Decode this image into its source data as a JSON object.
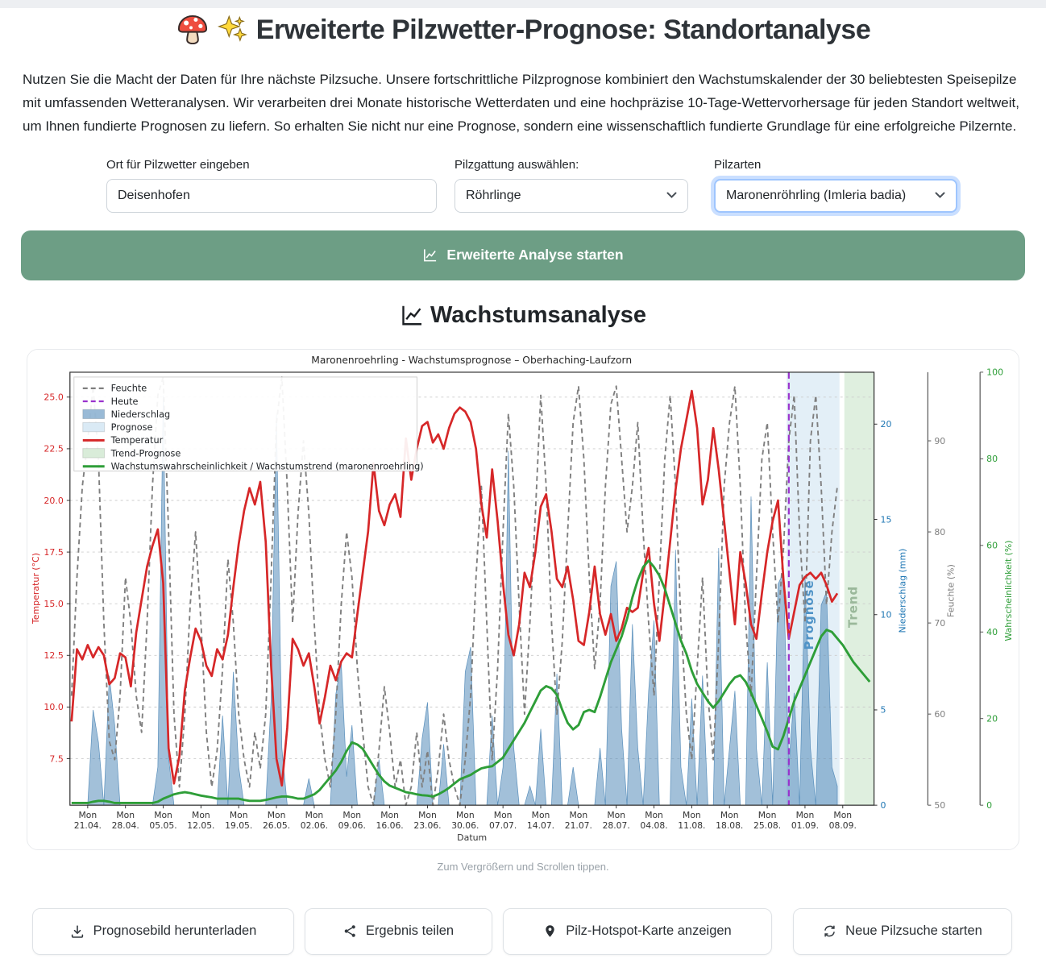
{
  "header": {
    "title": "Erweiterte Pilzwetter-Prognose: Standortanalyse"
  },
  "intro": {
    "text": "Nutzen Sie die Macht der Daten für Ihre nächste Pilzsuche. Unsere fortschrittliche Pilzprognose kombiniert den Wachstumskalender der 30 beliebtesten Speisepilze mit umfassenden Wetteranalysen. Wir verarbeiten drei Monate historische Wetterdaten und eine hochpräzise 10-Tage-Wettervorhersage für jeden Standort weltweit, um Ihnen fundierte Prognosen zu liefern. So erhalten Sie nicht nur eine Prognose, sondern eine wissenschaftlich fundierte Grundlage für eine erfolgreiche Pilzernte."
  },
  "form": {
    "location": {
      "label": "Ort für Pilzwetter eingeben",
      "value": "Deisenhofen"
    },
    "genus": {
      "label": "Pilzgattung auswählen:",
      "value": "Röhrlinge"
    },
    "species": {
      "label": "Pilzarten",
      "value": "Maronenröhrling (Imleria badia)"
    }
  },
  "analyze_button": {
    "label": "Erweiterte Analyse starten"
  },
  "section": {
    "title": "Wachstumsanalyse"
  },
  "chart": {
    "caption": "Zum Vergrößern und Scrollen tippen."
  },
  "actions": [
    {
      "icon": "download-icon",
      "label": "Prognosebild herunterladen"
    },
    {
      "icon": "share-icon",
      "label": "Ergebnis teilen"
    },
    {
      "icon": "map-pin-icon",
      "label": "Pilz-Hotspot-Karte anzeigen"
    },
    {
      "icon": "refresh-icon",
      "label": "Neue Pilzsuche starten"
    }
  ],
  "chart_data": {
    "type": "line",
    "title": "Maronenroehrling - Wachstumsprognose – Oberhaching-Laufzorn",
    "xlabel": "Datum",
    "x_tick_labels": [
      "Mon|21.04.",
      "Mon|28.04.",
      "Mon|05.05.",
      "Mon|12.05.",
      "Mon|19.05.",
      "Mon|26.05.",
      "Mon|02.06.",
      "Mon|09.06.",
      "Mon|16.06.",
      "Mon|23.06.",
      "Mon|30.06.",
      "Mon|07.07.",
      "Mon|14.07.",
      "Mon|21.07.",
      "Mon|28.07.",
      "Mon|04.08.",
      "Mon|11.08.",
      "Mon|18.08.",
      "Mon|25.08.",
      "Mon|01.09.",
      "Mon|08.09."
    ],
    "x_tick_day_indices": [
      3,
      10,
      17,
      24,
      31,
      38,
      45,
      52,
      59,
      66,
      73,
      80,
      87,
      94,
      101,
      108,
      115,
      122,
      129,
      136,
      143
    ],
    "n_days": 149,
    "today_index": 133,
    "forecast_span": [
      132.6,
      142.4
    ],
    "trend_span": [
      143.3,
      149
    ],
    "region_labels": {
      "forecast": "Prognose",
      "trend": "Trend"
    },
    "region_label_colors": {
      "forecast": "#4f93c7",
      "trend": "#9ab89a"
    },
    "today_color": "#9a32cd",
    "grid_color": "#cccccc",
    "axes": {
      "temperature": {
        "label": "Temperatur (°C)",
        "color": "#d62728",
        "ticks": [
          7.5,
          10.0,
          12.5,
          15.0,
          17.5,
          20.0,
          22.5,
          25.0
        ],
        "range": [
          5.25,
          26.2
        ]
      },
      "precipitation": {
        "label": "Niederschlag (mm)",
        "color": "#1f77b4",
        "ticks": [
          0,
          5,
          10,
          15,
          20
        ],
        "range": [
          0,
          22.7
        ]
      },
      "humidity": {
        "label": "Feuchte (%)",
        "color": "#7f7f7f",
        "ticks": [
          50,
          60,
          70,
          80,
          90
        ],
        "range": [
          50,
          97.5
        ]
      },
      "probability": {
        "label": "Wahrscheinlichkeit (%)",
        "color": "#2e9e38",
        "ticks": [
          0,
          20,
          40,
          60,
          80,
          100
        ],
        "range": [
          0,
          100
        ]
      }
    },
    "legend": [
      {
        "label": "Feuchte",
        "type": "dashline",
        "color": "#7f7f7f"
      },
      {
        "label": "Heute",
        "type": "dashline",
        "color": "#9a32cd"
      },
      {
        "label": "Niederschlag",
        "type": "patch",
        "color": "rgba(70,130,180,0.55)"
      },
      {
        "label": "Prognose",
        "type": "patch",
        "color": "#daeaf5"
      },
      {
        "label": "Temperatur",
        "type": "line",
        "color": "#d62728"
      },
      {
        "label": "Trend-Prognose",
        "type": "patch",
        "color": "#d9ecd9"
      },
      {
        "label": "Wachstumswahrscheinlichkeit / Wachstumstrend (maronenroehrling)",
        "type": "line",
        "color": "#2e9e38"
      }
    ],
    "series": {
      "temperature": [
        9.3,
        12.8,
        12.3,
        13,
        12.4,
        12.9,
        12.5,
        11.1,
        11.4,
        12.6,
        12.4,
        11,
        13.6,
        15.2,
        16.8,
        17.8,
        18.6,
        16,
        8,
        6.3,
        7.6,
        10.8,
        12.4,
        13.8,
        13.2,
        12,
        11.5,
        12.8,
        12.3,
        13.5,
        15.8,
        17.9,
        19.5,
        20.6,
        19.8,
        20.9,
        18,
        12,
        7.5,
        6.2,
        9,
        13.3,
        12.8,
        12,
        12.6,
        11,
        9.2,
        10.5,
        12,
        11.3,
        12.2,
        12.6,
        12.4,
        14.5,
        16.5,
        18.5,
        21.8,
        19.5,
        18.8,
        19.8,
        20.3,
        19.2,
        23,
        21,
        22.5,
        23.6,
        23.8,
        22.8,
        23.2,
        22.5,
        23.5,
        24.2,
        24.5,
        24.3,
        23.8,
        22.5,
        19.8,
        18.2,
        21.5,
        19,
        16,
        13.5,
        12.5,
        14,
        16.5,
        15.8,
        17.5,
        19.7,
        20.3,
        18.5,
        16.2,
        15.8,
        16.8,
        15.2,
        13.2,
        13,
        14.6,
        16.8,
        14.5,
        13.5,
        14.5,
        13.2,
        13.8,
        14.8,
        14.6,
        14.8,
        16.5,
        17.7,
        15,
        13.2,
        15.5,
        18,
        20.5,
        22.5,
        23.9,
        25.3,
        23.5,
        19.8,
        21,
        23.5,
        21.5,
        19,
        16.5,
        14,
        17.5,
        16,
        14,
        13.3,
        15.5,
        17.5,
        19,
        20,
        16.2,
        13.3,
        14.6,
        15.9,
        16.3,
        16.5,
        16.2,
        16.5,
        15.9,
        15.1,
        15.5
      ],
      "humidity": [
        62,
        75,
        85,
        90,
        96,
        88,
        70,
        57,
        55,
        62,
        75,
        70,
        62,
        58,
        70,
        85,
        95,
        97,
        80,
        60,
        52,
        60,
        72,
        80,
        70,
        58,
        52,
        56,
        65,
        77,
        70,
        60,
        55,
        52,
        58,
        54,
        60,
        75,
        92,
        97,
        85,
        70,
        82,
        90,
        82,
        70,
        60,
        55,
        52,
        60,
        72,
        80,
        75,
        65,
        58,
        52,
        50,
        56,
        63,
        58,
        52,
        55,
        50,
        52,
        58,
        52,
        56,
        50,
        54,
        60,
        55,
        52,
        50,
        55,
        62,
        75,
        85,
        70,
        55,
        65,
        80,
        93,
        85,
        72,
        60,
        70,
        82,
        95,
        85,
        70,
        60,
        68,
        80,
        92,
        96,
        88,
        75,
        65,
        72,
        85,
        94,
        96,
        88,
        80,
        85,
        92,
        80,
        70,
        62,
        75,
        88,
        95,
        85,
        70,
        60,
        55,
        65,
        75,
        62,
        55,
        68,
        85,
        92,
        96,
        85,
        70,
        62,
        75,
        88,
        92,
        80,
        70,
        78,
        90,
        95,
        80,
        70,
        90,
        95,
        85,
        72,
        80,
        85
      ],
      "precipitation": [
        0,
        0,
        0,
        0,
        5,
        3.3,
        0,
        6.8,
        4.2,
        0,
        0,
        0,
        0,
        0,
        0,
        0,
        2,
        21.5,
        2.5,
        0,
        0,
        0,
        0,
        0,
        0,
        0,
        0,
        0,
        4.7,
        0,
        7,
        2,
        0,
        0,
        0,
        0,
        0,
        5.5,
        20.5,
        3,
        0,
        0,
        0,
        0,
        1.4,
        0,
        0,
        0,
        0,
        5.8,
        7.5,
        1.5,
        4.2,
        0,
        0,
        0,
        0,
        2.4,
        0,
        0,
        0,
        0,
        0,
        0,
        0,
        3.5,
        5.4,
        0,
        0,
        3.2,
        0,
        0,
        0,
        7,
        8.3,
        0,
        0,
        0,
        4.7,
        0,
        2,
        18.6,
        3,
        0,
        0,
        1,
        0,
        4,
        0,
        0,
        6.9,
        0,
        0,
        2,
        0,
        0,
        0,
        0,
        3,
        0,
        11.5,
        12.8,
        4,
        0,
        9.5,
        3,
        0,
        6,
        9.7,
        0,
        0,
        0,
        13.4,
        2,
        0,
        5.6,
        0,
        6.8,
        0,
        0,
        13.5,
        0,
        3,
        6,
        0,
        0,
        16.2,
        3,
        0,
        7.5,
        0,
        11.6,
        12.2,
        2,
        5.9,
        0,
        12,
        3,
        0,
        10.5,
        11.2,
        2,
        1
      ],
      "probability": [
        0.5,
        0.5,
        0.5,
        0.5,
        0.8,
        1,
        1,
        0.8,
        0.5,
        0.5,
        0.5,
        0.5,
        0.5,
        0.5,
        0.5,
        0.5,
        0.8,
        1.5,
        2,
        2.5,
        2.8,
        3,
        2.8,
        2.5,
        2.2,
        2,
        1.8,
        1.5,
        1.5,
        1.5,
        1.5,
        1.5,
        1.2,
        1,
        1,
        1,
        1.2,
        1.5,
        1.8,
        2,
        2,
        1.8,
        1.5,
        1.5,
        2,
        2.5,
        3.5,
        5,
        6.5,
        8,
        10,
        12.5,
        14.5,
        14,
        13,
        11,
        9,
        7,
        5.5,
        4.5,
        4,
        3.5,
        3,
        2.8,
        2.5,
        2.3,
        2.2,
        2,
        2.5,
        3.2,
        4,
        5,
        6,
        6.5,
        7,
        7.8,
        8.5,
        8.8,
        9,
        10,
        11,
        13,
        15,
        17,
        19,
        21.5,
        24,
        26.5,
        27.5,
        27,
        25.5,
        22,
        19,
        17.5,
        18.5,
        21.5,
        22,
        21.5,
        25,
        29,
        33,
        36,
        39,
        43,
        48,
        52,
        55,
        56.5,
        55,
        53,
        50,
        46,
        42,
        38,
        35,
        31,
        28,
        26,
        24,
        22.5,
        24,
        26,
        28,
        29.5,
        30,
        28.5,
        26,
        23,
        20,
        17,
        13.5,
        12.9,
        16,
        20,
        24,
        27,
        30,
        33,
        36,
        39,
        40.5,
        40,
        38.5,
        37,
        35,
        33,
        31.5,
        30,
        28.5
      ]
    }
  }
}
